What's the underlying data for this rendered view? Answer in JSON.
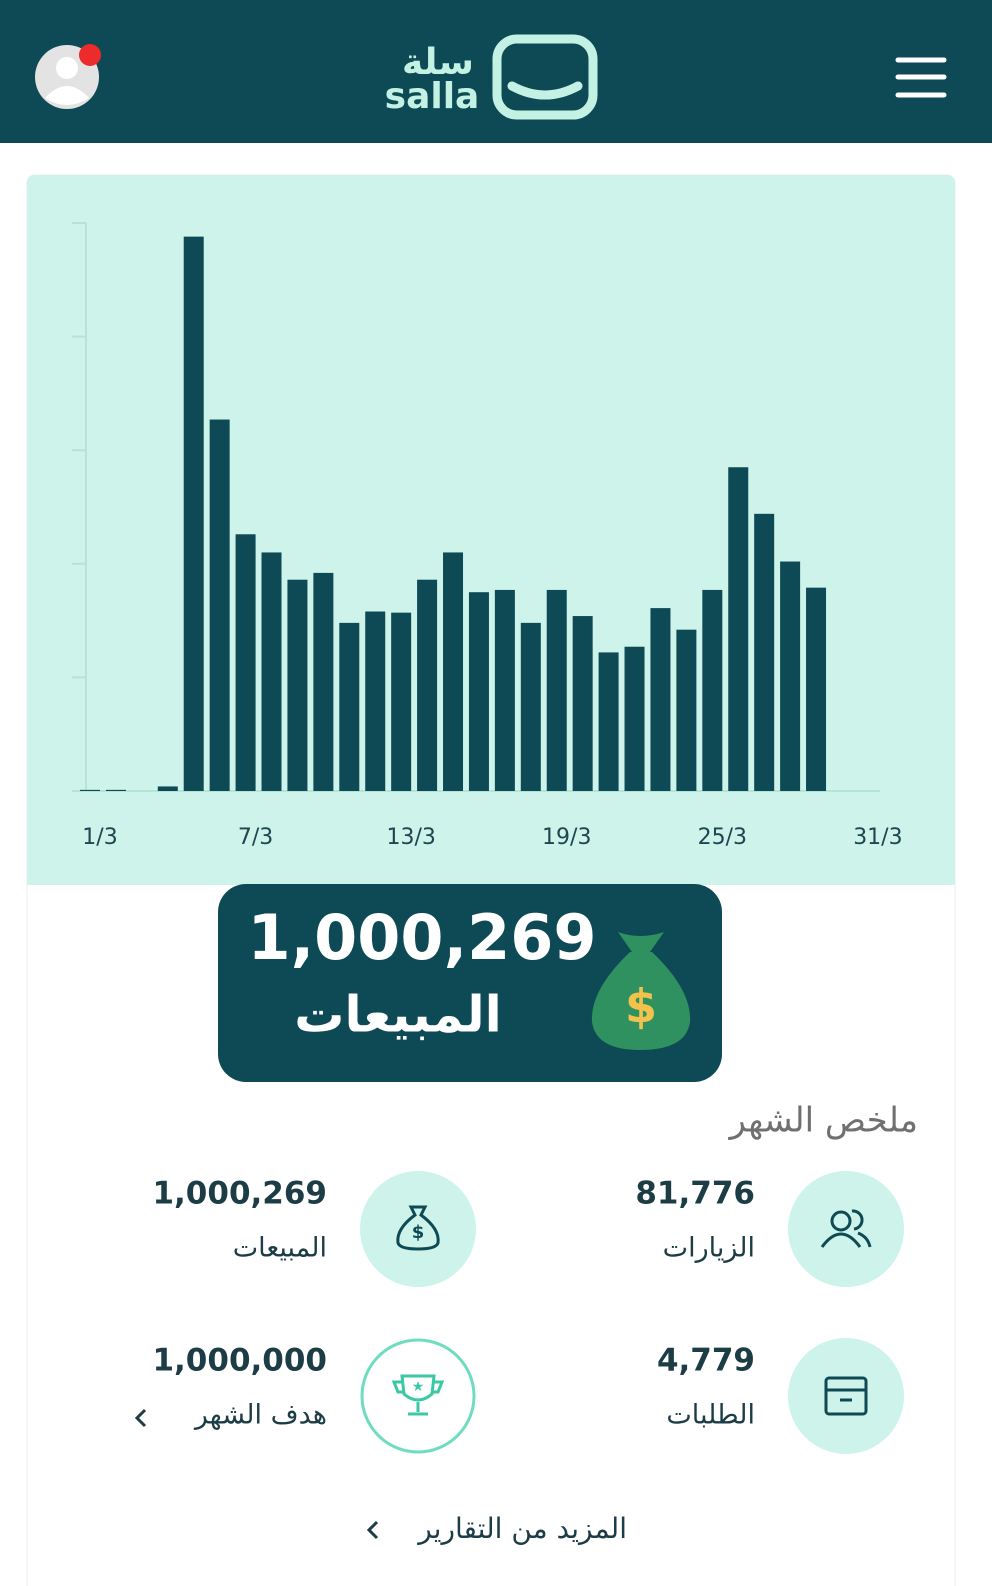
{
  "header": {
    "logo_ar": "سلة",
    "logo_en": "salla"
  },
  "chart_data": {
    "type": "bar",
    "categories": [
      "1/3",
      null,
      null,
      null,
      null,
      null,
      "7/3",
      null,
      null,
      null,
      null,
      null,
      "13/3",
      null,
      null,
      null,
      null,
      null,
      "19/3",
      null,
      null,
      null,
      null,
      null,
      "25/3",
      null,
      null,
      null,
      null,
      null,
      "31/3"
    ],
    "values": [
      0.01,
      0.01,
      0,
      0.04,
      4.88,
      3.27,
      2.26,
      2.1,
      1.86,
      1.92,
      1.48,
      1.58,
      1.57,
      1.86,
      2.1,
      1.75,
      1.77,
      1.48,
      1.77,
      1.54,
      1.22,
      1.27,
      1.61,
      1.42,
      1.77,
      2.85,
      2.44,
      2.02,
      1.79,
      0,
      0
    ],
    "color": "#0e4a55",
    "ylim": [
      0,
      5
    ],
    "yticks": [
      0,
      1,
      2,
      3,
      4,
      5
    ]
  },
  "highlight": {
    "value": "1,000,269",
    "label": "المبيعات"
  },
  "summary": {
    "title": "ملخص الشهر",
    "stats": [
      {
        "value": "81,776",
        "label": "الزيارات"
      },
      {
        "value": "1,000,269",
        "label": "المبيعات"
      },
      {
        "value": "4,779",
        "label": "الطلبات"
      },
      {
        "value": "1,000,000",
        "label": "هدف الشهر"
      }
    ]
  },
  "more_link": "المزيد من التقارير"
}
